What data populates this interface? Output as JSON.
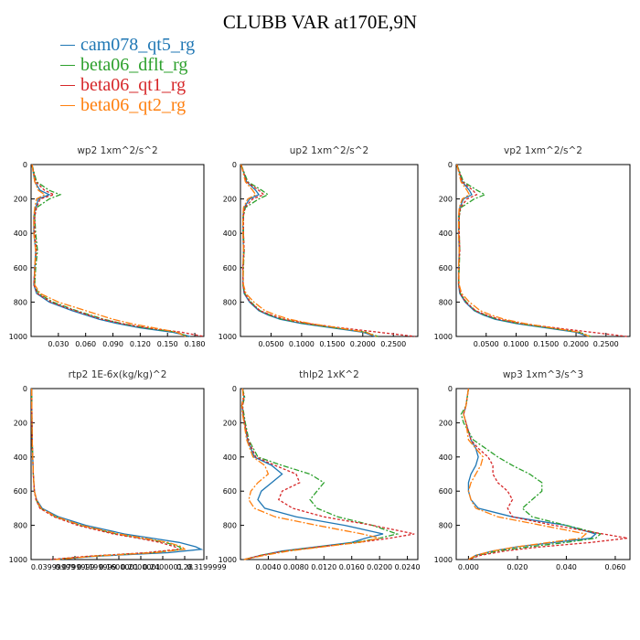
{
  "title": "CLUBB VAR at170E,9N",
  "legend": [
    {
      "name": "cam078_qt5_rg",
      "color": "#1f77b4"
    },
    {
      "name": "beta06_dflt_rg",
      "color": "#2ca02c"
    },
    {
      "name": "beta06_qt1_rg",
      "color": "#d62728"
    },
    {
      "name": "beta06_qt2_rg",
      "color": "#ff7f0e"
    }
  ],
  "chart_data": [
    {
      "type": "line",
      "title": "wp2  1xm^2/s^2",
      "xlim": [
        0.0,
        0.19
      ],
      "ylim": [
        1000,
        0
      ],
      "yticks": [
        "0",
        "200",
        "400",
        "600",
        "800",
        "1000"
      ],
      "xticks": [
        "0.030",
        "0.060",
        "0.090",
        "0.120",
        "0.150",
        "0.180"
      ],
      "y": [
        0,
        100,
        150,
        175,
        200,
        250,
        300,
        400,
        500,
        600,
        700,
        750,
        800,
        850,
        875,
        900,
        925,
        950,
        975,
        1000
      ],
      "series": [
        {
          "name": "cam078_qt5_rg",
          "values": [
            0.001,
            0.004,
            0.01,
            0.02,
            0.008,
            0.005,
            0.003,
            0.003,
            0.005,
            0.004,
            0.003,
            0.006,
            0.02,
            0.045,
            0.06,
            0.075,
            0.095,
            0.12,
            0.155,
            0.175
          ]
        },
        {
          "name": "beta06_dflt_rg",
          "values": [
            0.001,
            0.006,
            0.02,
            0.032,
            0.02,
            0.006,
            0.004,
            0.005,
            0.007,
            0.005,
            0.004,
            0.008,
            0.024,
            0.05,
            0.065,
            0.08,
            0.1,
            0.125,
            0.16,
            0.172
          ]
        },
        {
          "name": "beta06_qt1_rg",
          "values": [
            0.001,
            0.005,
            0.015,
            0.025,
            0.01,
            0.006,
            0.004,
            0.004,
            0.006,
            0.004,
            0.003,
            0.007,
            0.022,
            0.048,
            0.063,
            0.078,
            0.1,
            0.128,
            0.165,
            0.19
          ]
        },
        {
          "name": "beta06_qt2_rg",
          "values": [
            0.001,
            0.004,
            0.008,
            0.015,
            0.006,
            0.004,
            0.003,
            0.003,
            0.005,
            0.004,
            0.004,
            0.01,
            0.03,
            0.06,
            0.075,
            0.09,
            0.11,
            0.135,
            0.16,
            0.17
          ]
        }
      ]
    },
    {
      "type": "line",
      "title": "up2  1xm^2/s^2",
      "xlim": [
        0.0,
        0.29
      ],
      "ylim": [
        1000,
        0
      ],
      "yticks": [
        "0",
        "200",
        "400",
        "600",
        "800",
        "1000"
      ],
      "xticks": [
        "0.0500",
        "0.1000",
        "0.1500",
        "0.2000",
        "0.2500"
      ],
      "y": [
        0,
        100,
        150,
        175,
        200,
        250,
        300,
        400,
        500,
        600,
        700,
        750,
        800,
        850,
        875,
        900,
        925,
        950,
        975,
        1000
      ],
      "series": [
        {
          "name": "cam078_qt5_rg",
          "values": [
            0.001,
            0.01,
            0.025,
            0.03,
            0.015,
            0.006,
            0.004,
            0.004,
            0.005,
            0.004,
            0.004,
            0.006,
            0.015,
            0.03,
            0.045,
            0.065,
            0.1,
            0.15,
            0.2,
            0.22
          ]
        },
        {
          "name": "beta06_dflt_rg",
          "values": [
            0.001,
            0.012,
            0.035,
            0.045,
            0.03,
            0.008,
            0.005,
            0.005,
            0.006,
            0.005,
            0.004,
            0.007,
            0.017,
            0.032,
            0.048,
            0.068,
            0.105,
            0.155,
            0.205,
            0.225
          ]
        },
        {
          "name": "beta06_qt1_rg",
          "values": [
            0.001,
            0.01,
            0.03,
            0.038,
            0.02,
            0.007,
            0.005,
            0.005,
            0.006,
            0.004,
            0.004,
            0.007,
            0.016,
            0.032,
            0.05,
            0.072,
            0.11,
            0.165,
            0.225,
            0.285
          ]
        },
        {
          "name": "beta06_qt2_rg",
          "values": [
            0.001,
            0.008,
            0.02,
            0.025,
            0.012,
            0.005,
            0.004,
            0.004,
            0.005,
            0.004,
            0.005,
            0.009,
            0.022,
            0.04,
            0.058,
            0.08,
            0.115,
            0.16,
            0.205,
            0.222
          ]
        }
      ]
    },
    {
      "type": "line",
      "title": "vp2  1xm^2/s^2",
      "xlim": [
        0.0,
        0.29
      ],
      "ylim": [
        1000,
        0
      ],
      "yticks": [
        "0",
        "200",
        "400",
        "600",
        "800",
        "1000"
      ],
      "xticks": [
        "0.0500",
        "0.1000",
        "0.1500",
        "0.2000",
        "0.2500"
      ],
      "y": [
        0,
        100,
        150,
        175,
        200,
        250,
        300,
        400,
        500,
        600,
        700,
        750,
        800,
        850,
        875,
        900,
        925,
        950,
        975,
        1000
      ],
      "series": [
        {
          "name": "cam078_qt5_rg",
          "values": [
            0.001,
            0.01,
            0.022,
            0.026,
            0.012,
            0.006,
            0.004,
            0.004,
            0.005,
            0.004,
            0.004,
            0.006,
            0.015,
            0.03,
            0.045,
            0.065,
            0.1,
            0.15,
            0.2,
            0.22
          ]
        },
        {
          "name": "beta06_dflt_rg",
          "values": [
            0.001,
            0.012,
            0.035,
            0.048,
            0.03,
            0.008,
            0.005,
            0.005,
            0.006,
            0.005,
            0.004,
            0.007,
            0.017,
            0.032,
            0.048,
            0.068,
            0.105,
            0.155,
            0.205,
            0.225
          ]
        },
        {
          "name": "beta06_qt1_rg",
          "values": [
            0.001,
            0.01,
            0.028,
            0.034,
            0.018,
            0.007,
            0.005,
            0.005,
            0.006,
            0.004,
            0.004,
            0.007,
            0.016,
            0.032,
            0.05,
            0.072,
            0.11,
            0.165,
            0.225,
            0.285
          ]
        },
        {
          "name": "beta06_qt2_rg",
          "values": [
            0.001,
            0.008,
            0.018,
            0.022,
            0.01,
            0.005,
            0.004,
            0.004,
            0.005,
            0.004,
            0.005,
            0.009,
            0.022,
            0.04,
            0.058,
            0.08,
            0.115,
            0.16,
            0.205,
            0.222
          ]
        }
      ]
    },
    {
      "type": "line",
      "title": "rtp2  1E-6x(kg/kg)^2",
      "xlim": [
        0.0,
        0.315
      ],
      "ylim": [
        1000,
        0
      ],
      "yticks": [
        "0",
        "200",
        "400",
        "600",
        "800",
        "1000"
      ],
      "xticks": [
        "0.03999999",
        "0.0799999",
        "0.1199999",
        "0.1600001",
        "0.2000001",
        "0.2400001",
        "0.28",
        "0.3199999"
      ],
      "xtick_values": [
        0.04,
        0.08,
        0.12,
        0.16,
        0.2,
        0.24,
        0.28,
        0.32
      ],
      "y": [
        0,
        300,
        500,
        600,
        650,
        700,
        750,
        800,
        850,
        875,
        900,
        925,
        940,
        960,
        980,
        1000
      ],
      "series": [
        {
          "name": "cam078_qt5_rg",
          "values": [
            0.001,
            0.002,
            0.004,
            0.006,
            0.01,
            0.02,
            0.05,
            0.1,
            0.17,
            0.22,
            0.27,
            0.3,
            0.31,
            0.25,
            0.12,
            0.04
          ]
        },
        {
          "name": "beta06_dflt_rg",
          "values": [
            0.001,
            0.002,
            0.004,
            0.006,
            0.009,
            0.017,
            0.045,
            0.09,
            0.155,
            0.2,
            0.245,
            0.27,
            0.275,
            0.22,
            0.11,
            0.04
          ]
        },
        {
          "name": "beta06_qt1_rg",
          "values": [
            0.001,
            0.002,
            0.004,
            0.006,
            0.009,
            0.016,
            0.042,
            0.085,
            0.15,
            0.195,
            0.235,
            0.262,
            0.268,
            0.21,
            0.105,
            0.035
          ]
        },
        {
          "name": "beta06_qt2_rg",
          "values": [
            0.001,
            0.002,
            0.004,
            0.006,
            0.01,
            0.018,
            0.046,
            0.092,
            0.16,
            0.205,
            0.25,
            0.275,
            0.28,
            0.225,
            0.115,
            0.045
          ]
        }
      ]
    },
    {
      "type": "line",
      "title": "thlp2  1xK^2",
      "xlim": [
        0.0,
        0.0255
      ],
      "ylim": [
        1000,
        0
      ],
      "yticks": [
        "0",
        "200",
        "400",
        "600",
        "800",
        "1000"
      ],
      "xticks": [
        "0.0040",
        "0.0080",
        "0.0120",
        "0.0160",
        "0.0200",
        "0.0240"
      ],
      "y": [
        0,
        50,
        100,
        150,
        200,
        300,
        400,
        450,
        500,
        550,
        600,
        650,
        700,
        750,
        800,
        850,
        875,
        900,
        925,
        950,
        975,
        1000
      ],
      "series": [
        {
          "name": "cam078_qt5_rg",
          "values": [
            0.0003,
            0.0005,
            0.0002,
            0.0004,
            0.0006,
            0.001,
            0.002,
            0.0045,
            0.006,
            0.0045,
            0.003,
            0.0025,
            0.0035,
            0.008,
            0.015,
            0.0205,
            0.018,
            0.016,
            0.011,
            0.006,
            0.003,
            0.0005
          ]
        },
        {
          "name": "beta06_dflt_rg",
          "values": [
            0.0003,
            0.0006,
            0.0003,
            0.0005,
            0.0007,
            0.0012,
            0.0025,
            0.006,
            0.01,
            0.012,
            0.011,
            0.01,
            0.011,
            0.014,
            0.019,
            0.0225,
            0.02,
            0.0165,
            0.0115,
            0.0065,
            0.003,
            0.0005
          ]
        },
        {
          "name": "beta06_qt1_rg",
          "values": [
            0.0003,
            0.0005,
            0.0003,
            0.0004,
            0.0006,
            0.0011,
            0.0022,
            0.005,
            0.008,
            0.0085,
            0.006,
            0.0055,
            0.0075,
            0.012,
            0.019,
            0.025,
            0.0215,
            0.017,
            0.0115,
            0.0065,
            0.003,
            0.0005
          ]
        },
        {
          "name": "beta06_qt2_rg",
          "values": [
            0.0003,
            0.0004,
            0.0002,
            0.0003,
            0.0005,
            0.0009,
            0.0018,
            0.0035,
            0.004,
            0.0025,
            0.0015,
            0.0012,
            0.002,
            0.005,
            0.011,
            0.0175,
            0.02,
            0.017,
            0.012,
            0.007,
            0.0035,
            0.0005
          ]
        }
      ]
    },
    {
      "type": "line",
      "title": "wp3  1xm^3/s^3",
      "xlim": [
        -0.005,
        0.066
      ],
      "ylim": [
        1000,
        0
      ],
      "yticks": [
        "0",
        "200",
        "400",
        "600",
        "800",
        "1000"
      ],
      "xticks": [
        "0.000",
        "0.020",
        "0.040",
        "0.060"
      ],
      "y": [
        0,
        100,
        150,
        200,
        300,
        350,
        400,
        450,
        500,
        550,
        600,
        650,
        700,
        750,
        800,
        850,
        875,
        900,
        925,
        950,
        975,
        1000
      ],
      "series": [
        {
          "name": "cam078_qt5_rg",
          "values": [
            0.0,
            -0.001,
            -0.002,
            -0.001,
            0.001,
            0.003,
            0.004,
            0.003,
            0.001,
            0.0,
            0.0,
            0.001,
            0.004,
            0.018,
            0.04,
            0.052,
            0.05,
            0.035,
            0.02,
            0.01,
            0.003,
            0.0
          ]
        },
        {
          "name": "beta06_dflt_rg",
          "values": [
            0.0,
            -0.001,
            -0.003,
            -0.002,
            0.002,
            0.007,
            0.012,
            0.018,
            0.025,
            0.03,
            0.03,
            0.026,
            0.022,
            0.026,
            0.04,
            0.054,
            0.052,
            0.04,
            0.025,
            0.012,
            0.004,
            0.0
          ]
        },
        {
          "name": "beta06_qt1_rg",
          "values": [
            0.0,
            -0.001,
            -0.002,
            -0.001,
            0.001,
            0.004,
            0.008,
            0.01,
            0.01,
            0.012,
            0.016,
            0.018,
            0.016,
            0.018,
            0.035,
            0.055,
            0.065,
            0.05,
            0.03,
            0.015,
            0.005,
            0.0
          ]
        },
        {
          "name": "beta06_qt2_rg",
          "values": [
            0.0,
            -0.001,
            -0.002,
            -0.001,
            0.0,
            0.003,
            0.006,
            0.005,
            0.003,
            0.001,
            0.0,
            0.001,
            0.003,
            0.012,
            0.03,
            0.048,
            0.046,
            0.033,
            0.02,
            0.01,
            0.003,
            0.0
          ]
        }
      ]
    }
  ]
}
